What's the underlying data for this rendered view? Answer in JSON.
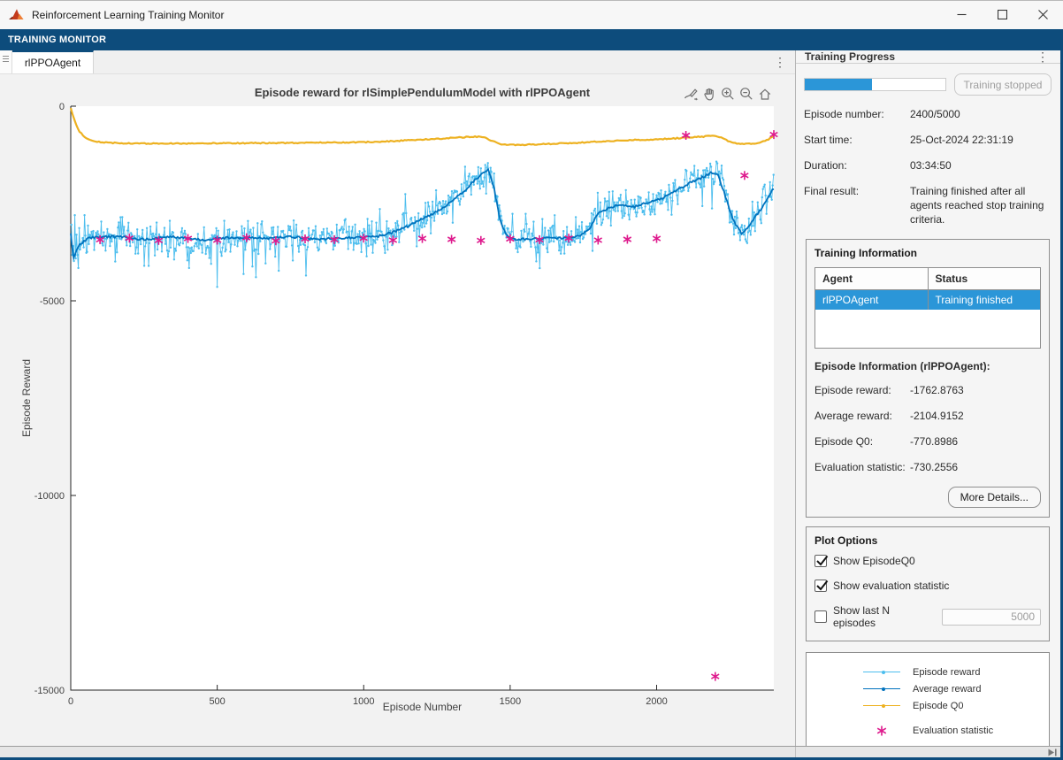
{
  "window": {
    "title": "Reinforcement Learning Training Monitor"
  },
  "toolstrip": {
    "label": "TRAINING MONITOR"
  },
  "tabs": {
    "active": "rlPPOAgent"
  },
  "colors": {
    "toolstrip_navy": "#0d4c7c",
    "accent_blue": "#2b96d8",
    "episode_reward": "#4DBEEE",
    "average_reward": "#0072BD",
    "episode_q0": "#EDB120",
    "evaluation_statistic": "#DE1A8D"
  },
  "training_progress": {
    "title": "Training Progress",
    "percent": 48,
    "stop_button_label": "Training stopped",
    "rows": [
      {
        "label": "Episode number:",
        "value": "2400/5000"
      },
      {
        "label": "Start time:",
        "value": "25-Oct-2024 22:31:19"
      },
      {
        "label": "Duration:",
        "value": "03:34:50"
      },
      {
        "label": "Final result:",
        "value": "Training finished after all agents reached stop training criteria."
      }
    ]
  },
  "training_information": {
    "title": "Training Information",
    "table": {
      "headers": [
        "Agent",
        "Status"
      ],
      "rows": [
        {
          "agent": "rlPPOAgent",
          "status": "Training finished",
          "selected": true
        }
      ]
    },
    "episode_info_title": "Episode Information (rlPPOAgent):",
    "rows": [
      {
        "label": "Episode reward:",
        "value": "-1762.8763"
      },
      {
        "label": "Average reward:",
        "value": "-2104.9152"
      },
      {
        "label": "Episode Q0:",
        "value": "-770.8986"
      },
      {
        "label": "Evaluation statistic:",
        "value": "-730.2556"
      }
    ],
    "more_details_label": "More Details..."
  },
  "plot_options": {
    "title": "Plot Options",
    "checkboxes": [
      {
        "label": "Show EpisodeQ0",
        "checked": true
      },
      {
        "label": "Show evaluation statistic",
        "checked": true
      },
      {
        "label": "Show last N episodes",
        "checked": false,
        "field_value": "5000"
      }
    ]
  },
  "legend": {
    "items": [
      {
        "label": "Episode reward"
      },
      {
        "label": "Average reward"
      },
      {
        "label": "Episode Q0"
      },
      {
        "label": "Evaluation statistic"
      }
    ]
  },
  "chart_data": {
    "type": "line",
    "title": "Episode reward for rlSimplePendulumModel with rlPPOAgent",
    "xlabel": "Episode Number",
    "ylabel": "Episode Reward",
    "xlim": [
      0,
      2400
    ],
    "ylim": [
      -15000,
      0
    ],
    "x_ticks": [
      0,
      500,
      1000,
      1500,
      2000
    ],
    "y_ticks": [
      0,
      -5000,
      -10000,
      -15000
    ],
    "grid": false,
    "legend_position": "separate-panel",
    "series": [
      {
        "name": "Episode reward",
        "color": "#4DBEEE",
        "style": "noisy-line-with-dot-markers",
        "derived_from": "Average reward anchors plus noise",
        "noise_std": 300,
        "spike_rate": 0.08,
        "clamp": [
          -4750,
          -1230
        ],
        "last_value": -1762.8763
      },
      {
        "name": "Average reward",
        "color": "#0072BD",
        "style": "line",
        "anchors": [
          [
            0,
            -3250
          ],
          [
            8,
            -3900
          ],
          [
            25,
            -3600
          ],
          [
            60,
            -3380
          ],
          [
            150,
            -3350
          ],
          [
            250,
            -3420
          ],
          [
            350,
            -3360
          ],
          [
            450,
            -3430
          ],
          [
            550,
            -3370
          ],
          [
            650,
            -3400
          ],
          [
            750,
            -3360
          ],
          [
            850,
            -3420
          ],
          [
            950,
            -3380
          ],
          [
            1050,
            -3340
          ],
          [
            1100,
            -3240
          ],
          [
            1150,
            -3080
          ],
          [
            1200,
            -2900
          ],
          [
            1250,
            -2700
          ],
          [
            1300,
            -2450
          ],
          [
            1350,
            -2130
          ],
          [
            1400,
            -1750
          ],
          [
            1425,
            -1620
          ],
          [
            1445,
            -2100
          ],
          [
            1465,
            -2900
          ],
          [
            1485,
            -3300
          ],
          [
            1520,
            -3420
          ],
          [
            1600,
            -3400
          ],
          [
            1680,
            -3380
          ],
          [
            1740,
            -3340
          ],
          [
            1770,
            -3150
          ],
          [
            1800,
            -2760
          ],
          [
            1840,
            -2610
          ],
          [
            1880,
            -2520
          ],
          [
            1920,
            -2590
          ],
          [
            1960,
            -2500
          ],
          [
            2000,
            -2430
          ],
          [
            2040,
            -2280
          ],
          [
            2080,
            -2110
          ],
          [
            2120,
            -1950
          ],
          [
            2160,
            -1810
          ],
          [
            2190,
            -1700
          ],
          [
            2210,
            -1780
          ],
          [
            2230,
            -2200
          ],
          [
            2250,
            -2700
          ],
          [
            2270,
            -3060
          ],
          [
            2290,
            -3260
          ],
          [
            2310,
            -3160
          ],
          [
            2330,
            -2910
          ],
          [
            2355,
            -2650
          ],
          [
            2380,
            -2350
          ],
          [
            2400,
            -2104.9152
          ]
        ]
      },
      {
        "name": "Episode Q0",
        "color": "#EDB120",
        "style": "line",
        "anchors": [
          [
            0,
            -40
          ],
          [
            6,
            -200
          ],
          [
            12,
            -350
          ],
          [
            20,
            -520
          ],
          [
            30,
            -650
          ],
          [
            45,
            -780
          ],
          [
            65,
            -860
          ],
          [
            90,
            -910
          ],
          [
            130,
            -940
          ],
          [
            200,
            -955
          ],
          [
            300,
            -960
          ],
          [
            450,
            -955
          ],
          [
            600,
            -950
          ],
          [
            750,
            -945
          ],
          [
            900,
            -935
          ],
          [
            1000,
            -925
          ],
          [
            1080,
            -905
          ],
          [
            1160,
            -875
          ],
          [
            1240,
            -845
          ],
          [
            1320,
            -805
          ],
          [
            1380,
            -785
          ],
          [
            1410,
            -790
          ],
          [
            1440,
            -900
          ],
          [
            1470,
            -975
          ],
          [
            1520,
            -1000
          ],
          [
            1580,
            -985
          ],
          [
            1650,
            -965
          ],
          [
            1720,
            -945
          ],
          [
            1790,
            -915
          ],
          [
            1850,
            -890
          ],
          [
            1900,
            -875
          ],
          [
            1950,
            -865
          ],
          [
            2000,
            -855
          ],
          [
            2060,
            -830
          ],
          [
            2120,
            -800
          ],
          [
            2170,
            -775
          ],
          [
            2200,
            -755
          ],
          [
            2220,
            -800
          ],
          [
            2245,
            -900
          ],
          [
            2270,
            -960
          ],
          [
            2300,
            -975
          ],
          [
            2340,
            -950
          ],
          [
            2370,
            -900
          ],
          [
            2400,
            -770.8986
          ]
        ]
      },
      {
        "name": "Evaluation statistic",
        "color": "#DE1A8D",
        "style": "asterisk-markers",
        "points": [
          [
            100,
            -3430
          ],
          [
            200,
            -3390
          ],
          [
            300,
            -3450
          ],
          [
            400,
            -3400
          ],
          [
            500,
            -3440
          ],
          [
            600,
            -3380
          ],
          [
            700,
            -3460
          ],
          [
            800,
            -3410
          ],
          [
            900,
            -3430
          ],
          [
            1000,
            -3390
          ],
          [
            1100,
            -3440
          ],
          [
            1200,
            -3400
          ],
          [
            1300,
            -3420
          ],
          [
            1400,
            -3450
          ],
          [
            1500,
            -3410
          ],
          [
            1600,
            -3430
          ],
          [
            1700,
            -3390
          ],
          [
            1800,
            -3440
          ],
          [
            1900,
            -3420
          ],
          [
            2000,
            -3400
          ],
          [
            2100,
            -750
          ],
          [
            2200,
            -14650
          ],
          [
            2300,
            -1780
          ],
          [
            2400,
            -730.2556
          ]
        ]
      }
    ]
  }
}
